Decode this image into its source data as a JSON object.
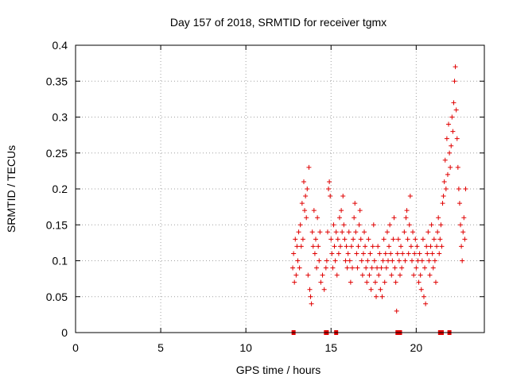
{
  "chart_data": {
    "type": "scatter",
    "title": "Day 157 of 2018, SRMTID for receiver tgmx",
    "xlabel": "GPS time / hours",
    "ylabel": "SRMTID / TECUs",
    "xlim": [
      0,
      24
    ],
    "ylim": [
      0,
      0.4
    ],
    "x_ticks": [
      0,
      5,
      10,
      15,
      20
    ],
    "x_tick_labels": [
      "0",
      "5",
      "10",
      "15",
      "20"
    ],
    "y_ticks": [
      0,
      0.05,
      0.1,
      0.15,
      0.2,
      0.25,
      0.3,
      0.35,
      0.4
    ],
    "y_tick_labels": [
      "0",
      "0.05",
      "0.1",
      "0.15",
      "0.2",
      "0.25",
      "0.3",
      "0.35",
      "0.4"
    ],
    "grid": true,
    "color": "#e00000",
    "marker": "plus",
    "series": [
      {
        "name": "SRMTID",
        "points": [
          [
            12.75,
            0.09
          ],
          [
            12.8,
            0.11
          ],
          [
            12.85,
            0.07
          ],
          [
            12.9,
            0.13
          ],
          [
            12.95,
            0.08
          ],
          [
            13.0,
            0.12
          ],
          [
            13.05,
            0.1
          ],
          [
            13.1,
            0.14
          ],
          [
            13.15,
            0.09
          ],
          [
            13.2,
            0.15
          ],
          [
            13.25,
            0.12
          ],
          [
            13.3,
            0.18
          ],
          [
            13.35,
            0.13
          ],
          [
            13.4,
            0.21
          ],
          [
            13.45,
            0.17
          ],
          [
            13.5,
            0.19
          ],
          [
            13.55,
            0.16
          ],
          [
            13.6,
            0.2
          ],
          [
            13.65,
            0.08
          ],
          [
            13.7,
            0.23
          ],
          [
            13.75,
            0.06
          ],
          [
            13.8,
            0.05
          ],
          [
            13.85,
            0.04
          ],
          [
            13.9,
            0.14
          ],
          [
            13.95,
            0.12
          ],
          [
            14.0,
            0.17
          ],
          [
            14.05,
            0.11
          ],
          [
            14.1,
            0.13
          ],
          [
            14.15,
            0.09
          ],
          [
            14.2,
            0.16
          ],
          [
            14.25,
            0.12
          ],
          [
            14.3,
            0.1
          ],
          [
            14.35,
            0.14
          ],
          [
            14.4,
            0.07
          ],
          [
            14.5,
            0.08
          ],
          [
            14.6,
            0.06
          ],
          [
            14.7,
            0.09
          ],
          [
            14.75,
            0.1
          ],
          [
            14.8,
            0.14
          ],
          [
            14.85,
            0.2
          ],
          [
            14.9,
            0.21
          ],
          [
            14.95,
            0.19
          ],
          [
            15.0,
            0.13
          ],
          [
            15.05,
            0.11
          ],
          [
            15.1,
            0.09
          ],
          [
            15.15,
            0.15
          ],
          [
            15.2,
            0.12
          ],
          [
            15.25,
            0.1
          ],
          [
            15.3,
            0.14
          ],
          [
            15.35,
            0.08
          ],
          [
            15.4,
            0.13
          ],
          [
            15.45,
            0.11
          ],
          [
            15.5,
            0.16
          ],
          [
            15.55,
            0.12
          ],
          [
            15.6,
            0.17
          ],
          [
            15.65,
            0.14
          ],
          [
            15.7,
            0.19
          ],
          [
            15.75,
            0.15
          ],
          [
            15.8,
            0.13
          ],
          [
            15.85,
            0.1
          ],
          [
            15.9,
            0.12
          ],
          [
            15.95,
            0.09
          ],
          [
            16.0,
            0.11
          ],
          [
            16.05,
            0.14
          ],
          [
            16.1,
            0.1
          ],
          [
            16.15,
            0.07
          ],
          [
            16.2,
            0.12
          ],
          [
            16.25,
            0.09
          ],
          [
            16.3,
            0.13
          ],
          [
            16.35,
            0.16
          ],
          [
            16.4,
            0.18
          ],
          [
            16.45,
            0.14
          ],
          [
            16.5,
            0.11
          ],
          [
            16.55,
            0.09
          ],
          [
            16.6,
            0.12
          ],
          [
            16.65,
            0.15
          ],
          [
            16.7,
            0.17
          ],
          [
            16.75,
            0.13
          ],
          [
            16.8,
            0.1
          ],
          [
            16.85,
            0.08
          ],
          [
            16.9,
            0.11
          ],
          [
            16.95,
            0.14
          ],
          [
            17.0,
            0.12
          ],
          [
            17.05,
            0.09
          ],
          [
            17.1,
            0.07
          ],
          [
            17.15,
            0.1
          ],
          [
            17.2,
            0.13
          ],
          [
            17.25,
            0.08
          ],
          [
            17.3,
            0.11
          ],
          [
            17.35,
            0.06
          ],
          [
            17.4,
            0.09
          ],
          [
            17.45,
            0.12
          ],
          [
            17.5,
            0.15
          ],
          [
            17.55,
            0.1
          ],
          [
            17.6,
            0.07
          ],
          [
            17.65,
            0.05
          ],
          [
            17.7,
            0.09
          ],
          [
            17.75,
            0.12
          ],
          [
            17.8,
            0.08
          ],
          [
            17.85,
            0.11
          ],
          [
            17.9,
            0.06
          ],
          [
            17.95,
            0.09
          ],
          [
            18.0,
            0.05
          ],
          [
            18.05,
            0.1
          ],
          [
            18.1,
            0.13
          ],
          [
            18.15,
            0.07
          ],
          [
            18.2,
            0.11
          ],
          [
            18.25,
            0.09
          ],
          [
            18.3,
            0.14
          ],
          [
            18.35,
            0.1
          ],
          [
            18.4,
            0.12
          ],
          [
            18.45,
            0.15
          ],
          [
            18.5,
            0.11
          ],
          [
            18.55,
            0.08
          ],
          [
            18.6,
            0.1
          ],
          [
            18.65,
            0.13
          ],
          [
            18.7,
            0.16
          ],
          [
            18.75,
            0.09
          ],
          [
            18.8,
            0.07
          ],
          [
            18.85,
            0.03
          ],
          [
            18.9,
            0.11
          ],
          [
            18.95,
            0.13
          ],
          [
            19.0,
            0.1
          ],
          [
            19.05,
            0.08
          ],
          [
            19.1,
            0.12
          ],
          [
            19.15,
            0.09
          ],
          [
            19.2,
            0.11
          ],
          [
            19.3,
            0.14
          ],
          [
            19.35,
            0.1
          ],
          [
            19.4,
            0.16
          ],
          [
            19.45,
            0.17
          ],
          [
            19.5,
            0.13
          ],
          [
            19.55,
            0.11
          ],
          [
            19.6,
            0.15
          ],
          [
            19.65,
            0.19
          ],
          [
            19.7,
            0.12
          ],
          [
            19.75,
            0.1
          ],
          [
            19.8,
            0.14
          ],
          [
            19.85,
            0.08
          ],
          [
            19.9,
            0.11
          ],
          [
            19.95,
            0.13
          ],
          [
            20.0,
            0.09
          ],
          [
            20.05,
            0.12
          ],
          [
            20.1,
            0.1
          ],
          [
            20.15,
            0.07
          ],
          [
            20.2,
            0.11
          ],
          [
            20.25,
            0.08
          ],
          [
            20.3,
            0.06
          ],
          [
            20.35,
            0.1
          ],
          [
            20.4,
            0.13
          ],
          [
            20.45,
            0.05
          ],
          [
            20.5,
            0.09
          ],
          [
            20.55,
            0.04
          ],
          [
            20.6,
            0.12
          ],
          [
            20.65,
            0.11
          ],
          [
            20.7,
            0.14
          ],
          [
            20.75,
            0.1
          ],
          [
            20.8,
            0.08
          ],
          [
            20.85,
            0.12
          ],
          [
            20.9,
            0.15
          ],
          [
            20.95,
            0.11
          ],
          [
            21.0,
            0.09
          ],
          [
            21.05,
            0.13
          ],
          [
            21.1,
            0.1
          ],
          [
            21.15,
            0.07
          ],
          [
            21.2,
            0.12
          ],
          [
            21.25,
            0.14
          ],
          [
            21.3,
            0.16
          ],
          [
            21.35,
            0.11
          ],
          [
            21.4,
            0.13
          ],
          [
            21.45,
            0.15
          ],
          [
            21.5,
            0.12
          ],
          [
            21.55,
            0.18
          ],
          [
            21.6,
            0.19
          ],
          [
            21.65,
            0.21
          ],
          [
            21.7,
            0.24
          ],
          [
            21.75,
            0.2
          ],
          [
            21.8,
            0.27
          ],
          [
            21.85,
            0.22
          ],
          [
            21.9,
            0.29
          ],
          [
            21.95,
            0.25
          ],
          [
            22.0,
            0.23
          ],
          [
            22.05,
            0.26
          ],
          [
            22.1,
            0.3
          ],
          [
            22.15,
            0.28
          ],
          [
            22.2,
            0.32
          ],
          [
            22.25,
            0.35
          ],
          [
            22.3,
            0.37
          ],
          [
            22.35,
            0.31
          ],
          [
            22.4,
            0.27
          ],
          [
            22.45,
            0.23
          ],
          [
            22.5,
            0.2
          ],
          [
            22.55,
            0.18
          ],
          [
            22.6,
            0.15
          ],
          [
            22.65,
            0.12
          ],
          [
            22.7,
            0.1
          ],
          [
            22.75,
            0.14
          ],
          [
            22.8,
            0.16
          ],
          [
            22.85,
            0.13
          ],
          [
            22.9,
            0.2
          ]
        ]
      }
    ],
    "zero_markers": [
      12.8,
      14.7,
      14.75,
      15.3,
      18.9,
      19.05,
      21.4,
      21.5,
      21.95
    ]
  }
}
